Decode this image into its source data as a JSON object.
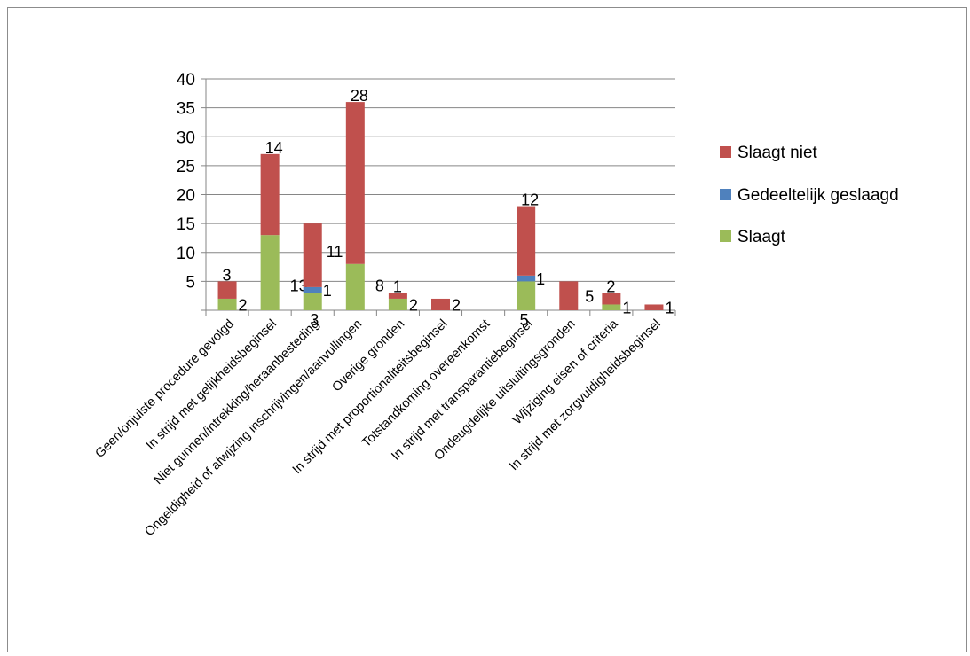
{
  "chart_data": {
    "type": "bar",
    "stacked": true,
    "categories": [
      "Geen/onjuiste procedure gevolgd",
      "In strijd met gelijkheidsbeginsel",
      "Niet gunnen/intrekking/heraanbesteding",
      "Ongeldigheid of afwijzing inschrijvingen/aanvullingen",
      "Overige gronden",
      "In strijd met proportionaliteitsbeginsel",
      "Totstandkoming overeenkomst",
      "In strijd met transparantiebeginsel",
      "Ondeugdelijke uitsluitingsgronden",
      "Wijziging eisen of criteria",
      "In strijd met zorgvuldigheidsbeginsel"
    ],
    "series": [
      {
        "name": "Slaagt",
        "color": "#9bbb59",
        "values": [
          2,
          13,
          3,
          8,
          2,
          0,
          0,
          5,
          0,
          1,
          0
        ],
        "labels": [
          "2",
          "13",
          "3",
          "8",
          "2",
          "",
          "",
          "5",
          "",
          "1",
          ""
        ]
      },
      {
        "name": "Gedeeltelijk geslaagd",
        "color": "#4f81bd",
        "values": [
          0,
          0,
          1,
          0,
          0,
          0,
          0,
          1,
          0,
          0,
          0
        ],
        "labels": [
          "",
          "",
          "1",
          "",
          "",
          "",
          "",
          "1",
          "",
          "",
          ""
        ]
      },
      {
        "name": "Slaagt niet",
        "color": "#c0504d",
        "values": [
          3,
          14,
          11,
          28,
          1,
          2,
          0,
          12,
          5,
          2,
          1
        ],
        "labels": [
          "3",
          "14",
          "11",
          "28",
          "1",
          "2",
          "",
          "12",
          "5",
          "2",
          "1"
        ]
      }
    ],
    "y_ticks": [
      "5",
      "10",
      "15",
      "20",
      "25",
      "30",
      "35",
      "40"
    ],
    "ylim": [
      0,
      40
    ],
    "legend": {
      "position": "right",
      "items": [
        {
          "name": "Slaagt niet",
          "color": "#c0504d"
        },
        {
          "name": "Gedeeltelijk geslaagd",
          "color": "#4f81bd"
        },
        {
          "name": "Slaagt",
          "color": "#9bbb59"
        }
      ]
    },
    "grid": true,
    "gridline_color": "#868686",
    "axis_color": "#868686"
  }
}
